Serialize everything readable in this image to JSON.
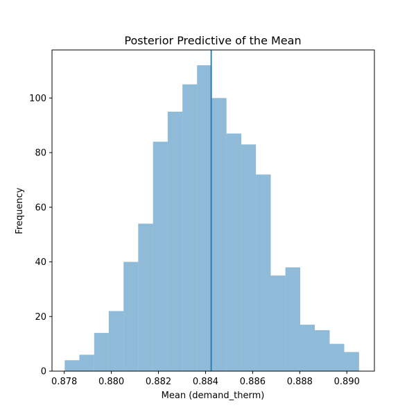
{
  "chart_data": {
    "type": "bar",
    "title": "Posterior Predictive of the Mean",
    "xlabel": "Mean (demand_therm)",
    "ylabel": "Frequency",
    "xlim": [
      0.87748,
      0.89117
    ],
    "ylim": [
      0,
      117.6
    ],
    "xticks": [
      0.878,
      0.88,
      0.882,
      0.884,
      0.886,
      0.888,
      0.89
    ],
    "xtick_labels": [
      "0.878",
      "0.880",
      "0.882",
      "0.884",
      "0.886",
      "0.888",
      "0.890"
    ],
    "yticks": [
      0,
      20,
      40,
      60,
      80,
      100
    ],
    "ytick_labels": [
      "0",
      "20",
      "40",
      "60",
      "80",
      "100"
    ],
    "bin_edges": [
      0.87802,
      0.87864,
      0.87927,
      0.87989,
      0.88052,
      0.88114,
      0.88177,
      0.88239,
      0.88302,
      0.88364,
      0.88427,
      0.88489,
      0.88552,
      0.88614,
      0.88677,
      0.88739,
      0.88802,
      0.88864,
      0.88927,
      0.88989,
      0.89052
    ],
    "counts": [
      4,
      6,
      14,
      22,
      40,
      54,
      84,
      95,
      105,
      112,
      100,
      87,
      83,
      72,
      35,
      38,
      17,
      15,
      10,
      7
    ],
    "vline_x": 0.88424,
    "colors": {
      "bar": "#1f77b4",
      "bar_opacity": 0.5,
      "vline": "#1f77b4"
    },
    "grid": false,
    "legend": "none"
  }
}
